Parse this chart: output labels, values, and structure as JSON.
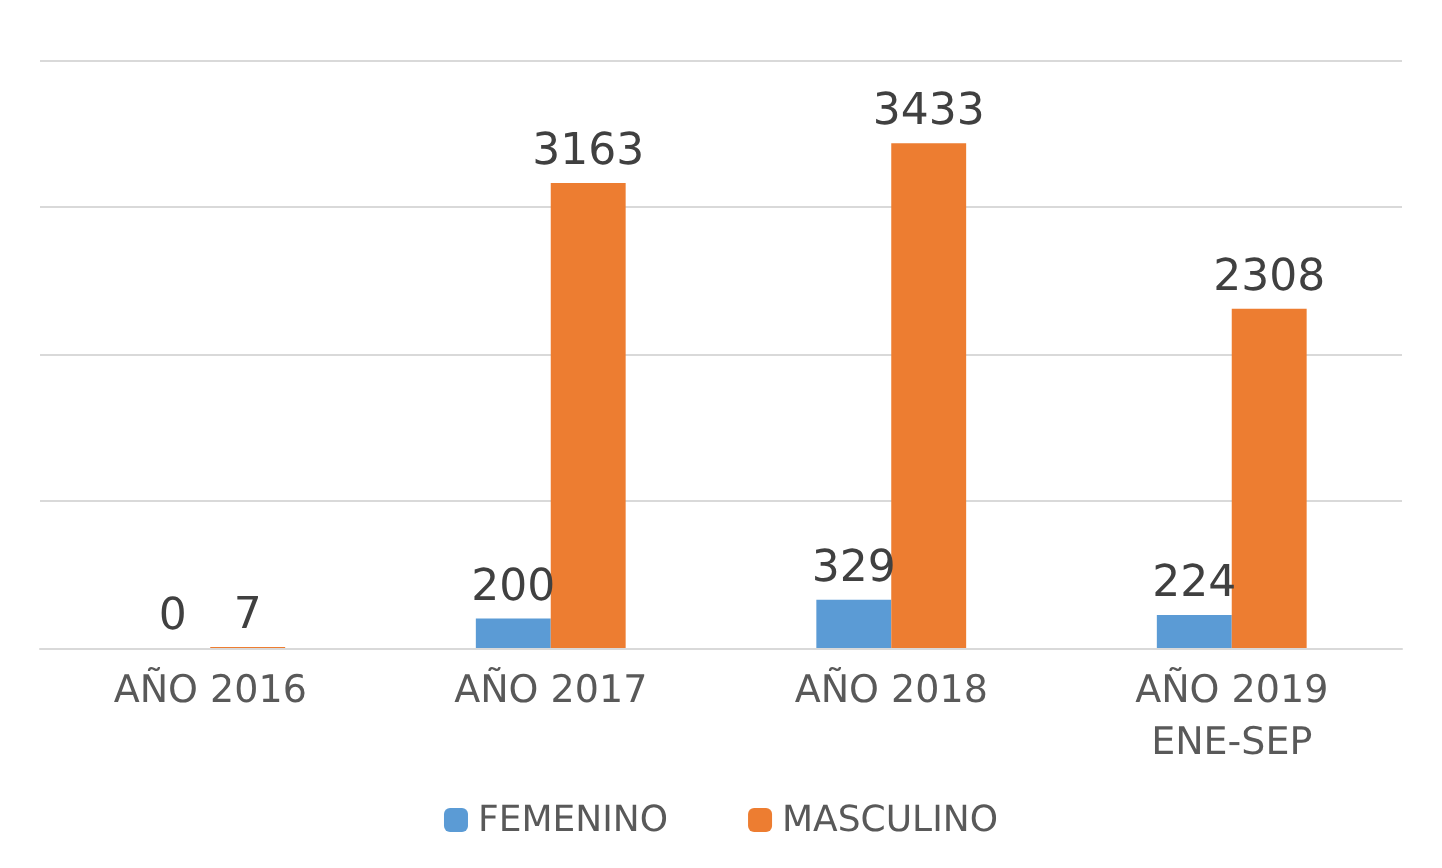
{
  "chart_data": {
    "type": "bar",
    "categories": [
      "AÑO 2016",
      "AÑO 2017",
      "AÑO 2018",
      "AÑO 2019\nENE-SEP"
    ],
    "series": [
      {
        "name": "FEMENINO",
        "color": "#5b9bd5",
        "values": [
          0,
          200,
          329,
          224
        ]
      },
      {
        "name": "MASCULINO",
        "color": "#ed7d31",
        "values": [
          7,
          3163,
          3433,
          2308
        ]
      }
    ],
    "ylim": [
      0,
      4000
    ],
    "yticks": [
      {
        "value": 0,
        "label": null
      },
      {
        "value": 1000,
        "label": null
      },
      {
        "value": 2000,
        "label": null
      },
      {
        "value": 3000,
        "label": null
      },
      {
        "value": 4000,
        "label": null
      }
    ],
    "grid": "y",
    "legend": "bottom",
    "data_labels": true,
    "tick_labels": "x"
  }
}
